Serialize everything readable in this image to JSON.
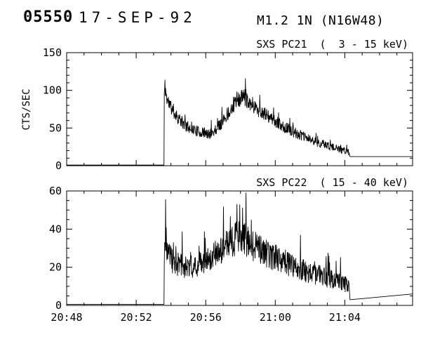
{
  "header": {
    "event_id": "05550",
    "date": "17-SEP-92",
    "flare_info": "M1.2  1N (N16W48)"
  },
  "axes_x": {
    "start_time": "20:48",
    "xlim_minutes_after_start": [
      0,
      19.9
    ],
    "major_ticks": [
      0,
      4,
      8,
      12,
      16
    ],
    "minor_step": 1,
    "labels": [
      "20:48",
      "20:52",
      "20:56",
      "21:00",
      "21:04"
    ],
    "label_ticks": [
      0,
      4,
      8,
      12,
      16
    ]
  },
  "chart_data": [
    {
      "type": "line",
      "name": "SXS PC21",
      "title": "SXS PC21  (  3 - 15 keV)",
      "ylabel": "CTS/SEC",
      "ylim": [
        0,
        150
      ],
      "yticks": [
        0,
        50,
        100,
        150
      ],
      "y_minor_step": 10,
      "show_x_labels": false,
      "x_unit": "minutes after 20:48",
      "baseline": [
        [
          0,
          0.8
        ],
        [
          5.6,
          0.8
        ]
      ],
      "envelope": [
        [
          5.62,
          96
        ],
        [
          5.66,
          106
        ],
        [
          5.75,
          90
        ],
        [
          5.9,
          82
        ],
        [
          6.1,
          74
        ],
        [
          6.4,
          64
        ],
        [
          6.7,
          56
        ],
        [
          7.0,
          51
        ],
        [
          7.3,
          48
        ],
        [
          7.6,
          45
        ],
        [
          7.9,
          43
        ],
        [
          8.15,
          41
        ],
        [
          8.4,
          44
        ],
        [
          8.65,
          50
        ],
        [
          8.9,
          57
        ],
        [
          9.2,
          67
        ],
        [
          9.5,
          77
        ],
        [
          9.8,
          85
        ],
        [
          10.05,
          90
        ],
        [
          10.2,
          92
        ],
        [
          10.35,
          88
        ],
        [
          10.55,
          84
        ],
        [
          10.8,
          79
        ],
        [
          11.1,
          73
        ],
        [
          11.4,
          68
        ],
        [
          11.7,
          63
        ],
        [
          12.0,
          58
        ],
        [
          12.4,
          53
        ],
        [
          12.8,
          48
        ],
        [
          13.2,
          43
        ],
        [
          13.6,
          39
        ],
        [
          14.0,
          35
        ],
        [
          14.4,
          31
        ],
        [
          14.8,
          28
        ],
        [
          15.2,
          25
        ],
        [
          15.6,
          22
        ],
        [
          16.0,
          20
        ],
        [
          16.25,
          18
        ]
      ],
      "tail": [
        [
          16.3,
          12
        ],
        [
          19.9,
          12
        ]
      ],
      "noise": {
        "seed": 11,
        "base": 3,
        "scale": 0.09,
        "spike_prob": 0.025,
        "spike_mult": 1.6
      },
      "clamp_max": 148
    },
    {
      "type": "line",
      "name": "SXS PC22",
      "title": "SXS PC22  ( 15 - 40 keV)",
      "ylabel": "",
      "ylim": [
        0,
        60
      ],
      "yticks": [
        0,
        20,
        40,
        60
      ],
      "y_minor_step": 5,
      "show_x_labels": true,
      "x_unit": "minutes after 20:48",
      "baseline": [
        [
          0,
          0.5
        ],
        [
          5.6,
          0.5
        ]
      ],
      "envelope": [
        [
          5.62,
          30
        ],
        [
          5.7,
          34
        ],
        [
          5.85,
          27
        ],
        [
          6.05,
          24
        ],
        [
          6.3,
          22
        ],
        [
          6.6,
          21
        ],
        [
          7.0,
          20
        ],
        [
          7.4,
          21
        ],
        [
          7.8,
          23
        ],
        [
          8.2,
          25
        ],
        [
          8.6,
          27
        ],
        [
          9.0,
          30
        ],
        [
          9.4,
          33
        ],
        [
          9.7,
          35
        ],
        [
          10.0,
          36
        ],
        [
          10.25,
          35
        ],
        [
          10.5,
          33
        ],
        [
          10.8,
          31
        ],
        [
          11.1,
          29
        ],
        [
          11.5,
          27
        ],
        [
          12.0,
          25
        ],
        [
          12.5,
          23
        ],
        [
          13.0,
          21
        ],
        [
          13.5,
          19
        ],
        [
          14.0,
          17
        ],
        [
          14.5,
          16
        ],
        [
          15.0,
          14
        ],
        [
          15.5,
          13
        ],
        [
          16.0,
          11
        ],
        [
          16.25,
          10
        ]
      ],
      "tail": [
        [
          16.3,
          3
        ],
        [
          19.9,
          6
        ]
      ],
      "noise": {
        "seed": 23,
        "base": 2.5,
        "scale": 0.18,
        "spike_prob": 0.03,
        "spike_mult": 2.2
      },
      "clamp_max": 59
    }
  ],
  "colors": {
    "line": "#000000",
    "background": "#ffffff",
    "text": "#000000"
  }
}
